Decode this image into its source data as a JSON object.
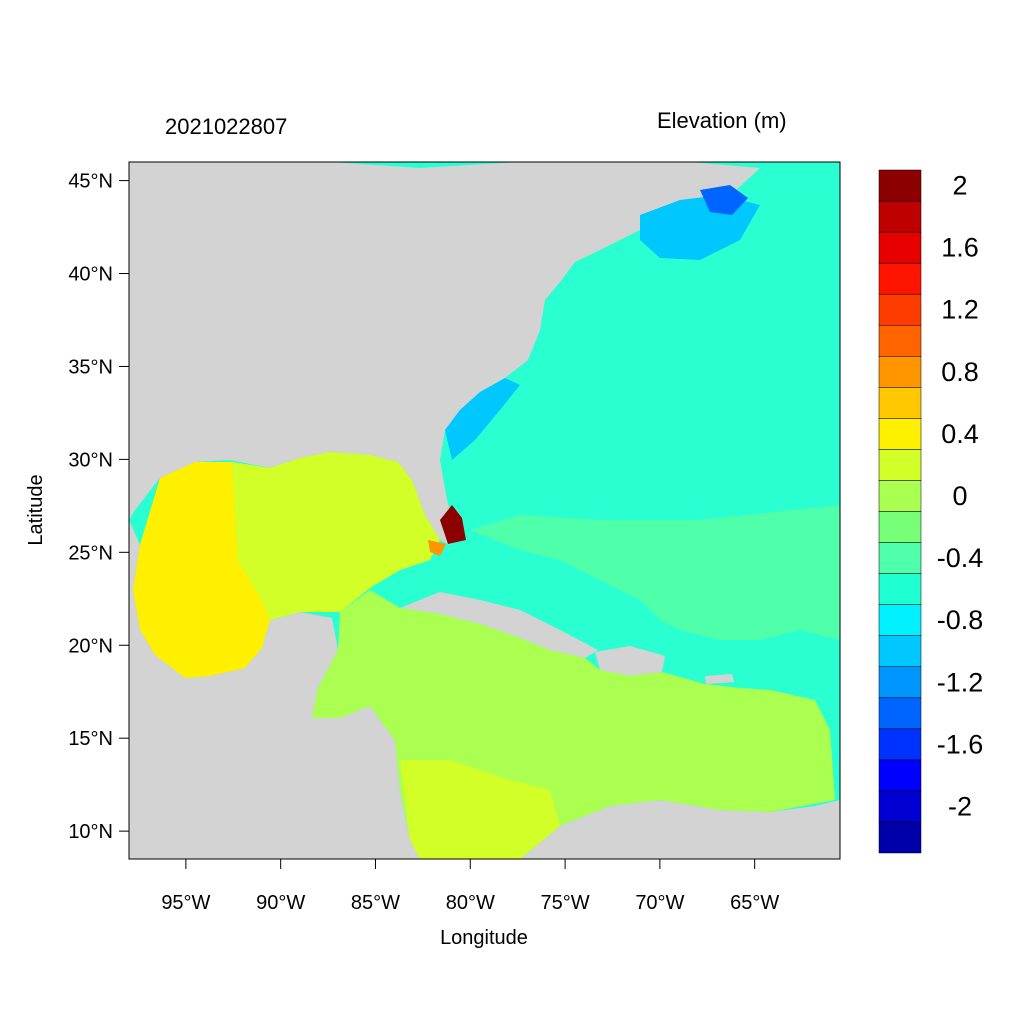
{
  "header": {
    "timestamp": "2021022807",
    "variable_title": "Elevation (m)"
  },
  "axes": {
    "xlabel": "Longitude",
    "ylabel": "Latitude",
    "lon_range": [
      -98,
      -60.5
    ],
    "lat_range": [
      8.5,
      46
    ],
    "x_ticks": [
      {
        "lon": -95,
        "label": "95°W"
      },
      {
        "lon": -90,
        "label": "90°W"
      },
      {
        "lon": -85,
        "label": "85°W"
      },
      {
        "lon": -80,
        "label": "80°W"
      },
      {
        "lon": -75,
        "label": "75°W"
      },
      {
        "lon": -70,
        "label": "70°W"
      },
      {
        "lon": -65,
        "label": "65°W"
      }
    ],
    "y_ticks": [
      {
        "lat": 45,
        "label": "45°N"
      },
      {
        "lat": 40,
        "label": "40°N"
      },
      {
        "lat": 35,
        "label": "35°N"
      },
      {
        "lat": 30,
        "label": "30°N"
      },
      {
        "lat": 25,
        "label": "25°N"
      },
      {
        "lat": 20,
        "label": "20°N"
      },
      {
        "lat": 15,
        "label": "15°N"
      },
      {
        "lat": 10,
        "label": "10°N"
      }
    ]
  },
  "colorbar": {
    "colors": [
      "#0000aa",
      "#0000d2",
      "#0000ff",
      "#0032ff",
      "#0064ff",
      "#0096ff",
      "#00c8ff",
      "#00f0ff",
      "#1effd2",
      "#50ffaa",
      "#78ff78",
      "#aaff50",
      "#d2ff28",
      "#fff000",
      "#ffc800",
      "#ff9600",
      "#ff6400",
      "#ff3c00",
      "#ff1400",
      "#e60000",
      "#be0000",
      "#8c0000"
    ],
    "labels": [
      "-2",
      "-1.6",
      "-1.2",
      "-0.8",
      "-0.4",
      "0",
      "0.4",
      "0.8",
      "1.2",
      "1.6",
      "2"
    ]
  },
  "colors": {
    "land": "#d3d3d3",
    "atlantic_main": "#2affd2",
    "gulf_interior": "#d2ff28",
    "gulf_west": "#fff000",
    "caribbean": "#aaff50",
    "southwest_caribbean": "#d2ff28",
    "surge_max": "#8c0000"
  }
}
